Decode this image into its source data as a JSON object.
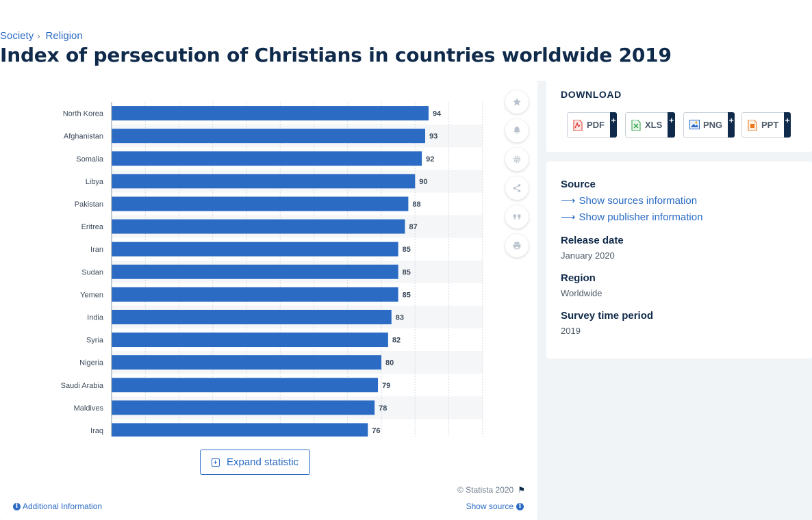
{
  "breadcrumb": {
    "items": [
      "Society",
      "Religion"
    ],
    "separator": "›"
  },
  "title": "Index of persecution of Christians in countries worldwide 2019",
  "chart_data": {
    "type": "bar",
    "orientation": "horizontal",
    "categories": [
      "North Korea",
      "Afghanistan",
      "Somalia",
      "Libya",
      "Pakistan",
      "Eritrea",
      "Iran",
      "Sudan",
      "Yemen",
      "India",
      "Syria",
      "Nigeria",
      "Saudi Arabia",
      "Maldives",
      "Iraq"
    ],
    "values": [
      94,
      93,
      92,
      90,
      88,
      87,
      85,
      85,
      85,
      83,
      82,
      80,
      79,
      78,
      76
    ],
    "xlim": [
      0,
      110
    ],
    "gridlines": [
      0,
      10,
      20,
      30,
      40,
      50,
      60,
      70,
      80,
      90,
      100,
      110
    ],
    "bar_color": "#2b6bc4"
  },
  "toolbar": {
    "icons": [
      "star-icon",
      "bell-icon",
      "gear-icon",
      "share-icon",
      "quote-icon",
      "print-icon"
    ]
  },
  "expand_label": "Expand statistic",
  "copyright": "© Statista 2020",
  "additional_info": "Additional Information",
  "show_source": "Show source",
  "download": {
    "title": "DOWNLOAD",
    "buttons": [
      {
        "label": "PDF",
        "plus": "+",
        "color": "#d9342b"
      },
      {
        "label": "XLS",
        "plus": "+",
        "color": "#2f9e44"
      },
      {
        "label": "PNG",
        "plus": "+",
        "color": "#2b6bc4"
      },
      {
        "label": "PPT",
        "plus": "+",
        "color": "#e8761e"
      }
    ]
  },
  "info": {
    "source_label": "Source",
    "show_sources": "Show sources information",
    "show_publisher": "Show publisher information",
    "release_label": "Release date",
    "release_value": "January 2020",
    "region_label": "Region",
    "region_value": "Worldwide",
    "survey_label": "Survey time period",
    "survey_value": "2019"
  }
}
